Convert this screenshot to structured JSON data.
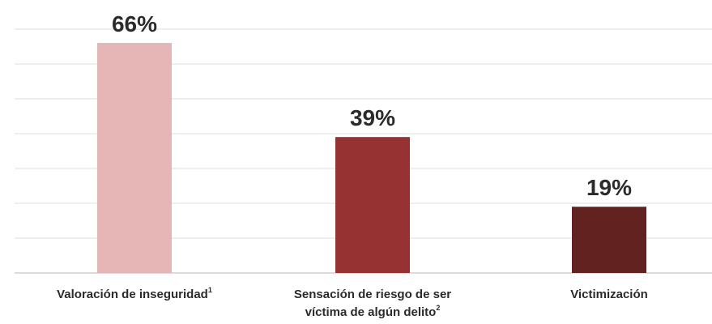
{
  "chart_data": {
    "type": "bar",
    "title": "",
    "xlabel": "",
    "ylabel": "",
    "ylim": [
      0,
      70
    ],
    "grid": true,
    "categories": [
      {
        "lines": [
          {
            "text": "Valoración de inseguridad",
            "sup": "1"
          }
        ]
      },
      {
        "lines": [
          {
            "text": "Sensación de riesgo de ser",
            "sup": ""
          },
          {
            "text": "víctima de algún delito",
            "sup": "2"
          }
        ]
      },
      {
        "lines": [
          {
            "text": "Victimización",
            "sup": ""
          }
        ]
      }
    ],
    "values": [
      66,
      39,
      19
    ],
    "value_labels": [
      "66%",
      "39%",
      "19%"
    ],
    "colors": [
      "#e6b5b5",
      "#963332",
      "#622220"
    ]
  }
}
